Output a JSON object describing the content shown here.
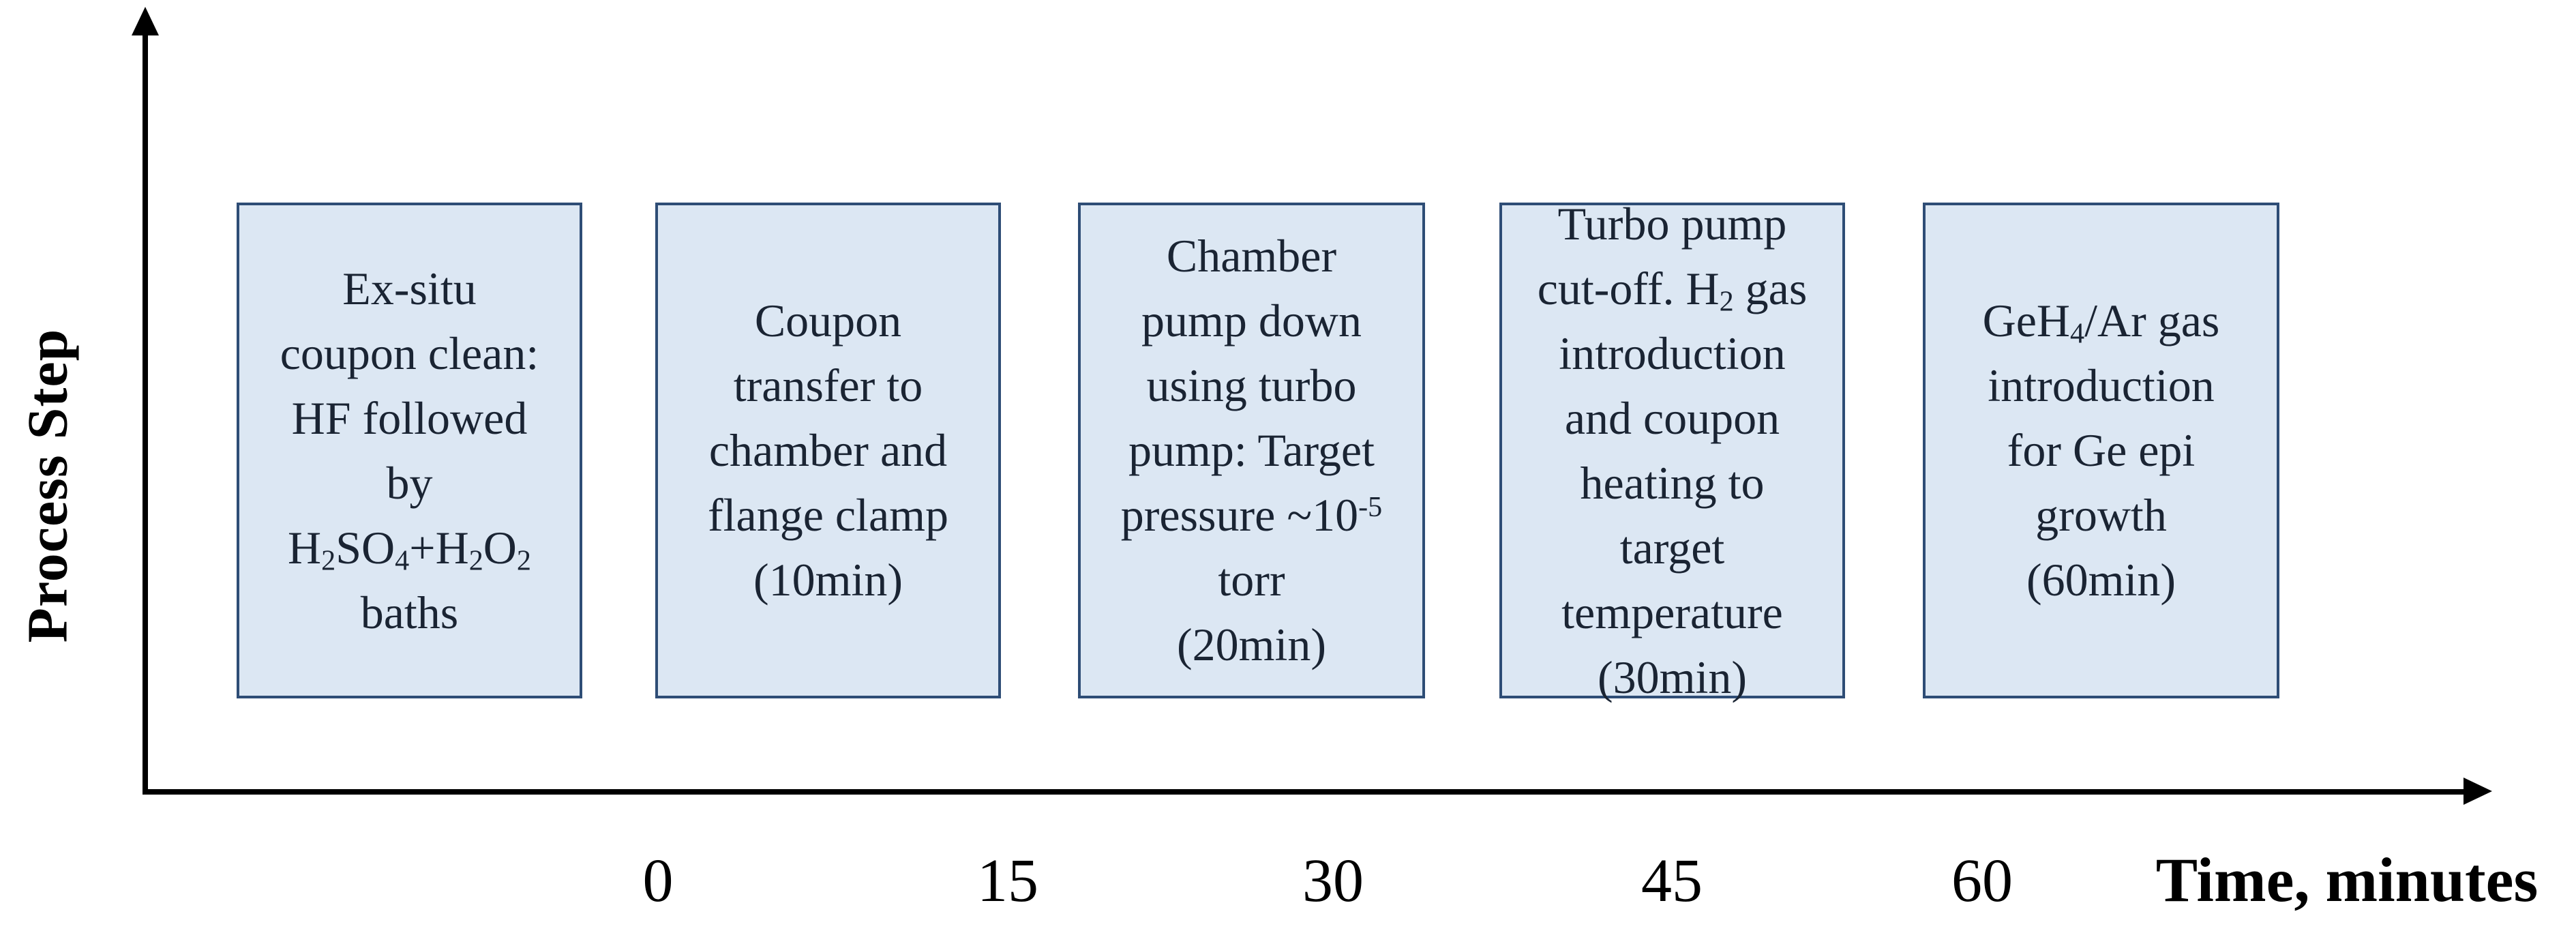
{
  "figure": {
    "y_axis_label": "Process Step",
    "x_axis_label": "Time, minutes",
    "x_axis_ticks": [
      "0",
      "15",
      "30",
      "45",
      "60"
    ],
    "steps": [
      {
        "lines": [
          "Ex-situ",
          "coupon clean:",
          "HF followed",
          "by",
          "H_{2}SO_{4}+H_{2}O_{2}",
          "baths"
        ]
      },
      {
        "lines": [
          "Coupon",
          "transfer to",
          "chamber and",
          "flange clamp",
          "(10min)"
        ]
      },
      {
        "lines": [
          "Chamber",
          "pump down",
          "using turbo",
          "pump: Target",
          "pressure ~10^{-5}",
          "torr",
          "(20min)"
        ]
      },
      {
        "lines": [
          "Turbo pump",
          "cut-off. H_{2} gas",
          "introduction",
          "and coupon",
          "heating to",
          "target",
          "temperature",
          "(30min)"
        ]
      },
      {
        "lines": [
          "GeH_{4}/Ar gas",
          "introduction",
          "for Ge epi",
          "growth",
          "(60min)"
        ]
      }
    ],
    "colors": {
      "box_fill": "#dce7f3",
      "box_border": "#2e4d76",
      "box_text": "#1a2433",
      "axis": "#000000"
    }
  }
}
